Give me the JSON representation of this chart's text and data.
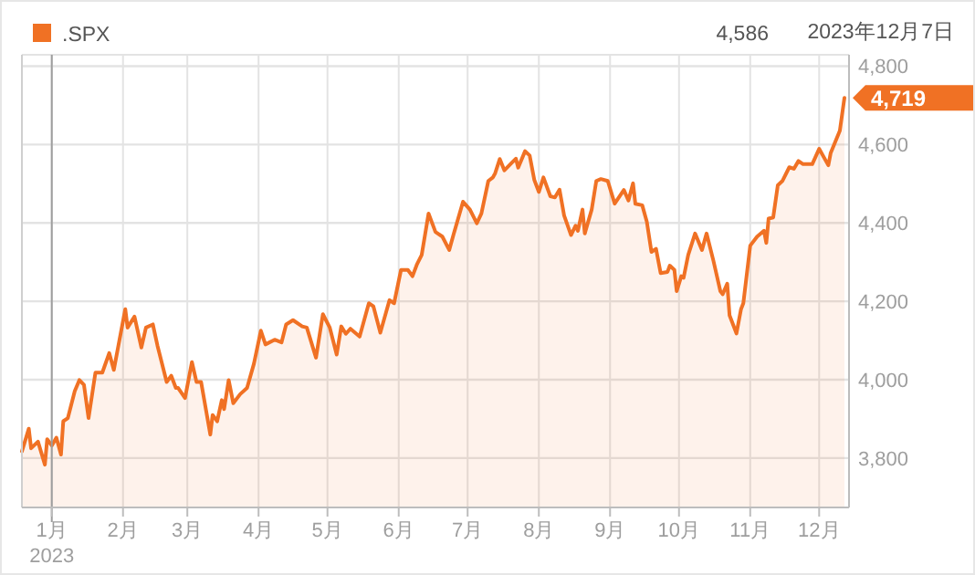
{
  "chart_data": {
    "type": "area",
    "legend": "top left",
    "grid": true,
    "xlim": [
      "2022-12-19",
      "2023-12-14"
    ],
    "ylim": [
      3674,
      4829
    ],
    "xticks": [
      {
        "value": "2023-01-01",
        "label": "1月"
      },
      {
        "value": "2023-02-01",
        "label": "2月"
      },
      {
        "value": "2023-03-01",
        "label": "3月"
      },
      {
        "value": "2023-04-01",
        "label": "4月"
      },
      {
        "value": "2023-05-01",
        "label": "5月"
      },
      {
        "value": "2023-06-01",
        "label": "6月"
      },
      {
        "value": "2023-07-01",
        "label": "7月"
      },
      {
        "value": "2023-08-01",
        "label": "8月"
      },
      {
        "value": "2023-09-01",
        "label": "9月"
      },
      {
        "value": "2023-10-01",
        "label": "10月"
      },
      {
        "value": "2023-11-01",
        "label": "11月"
      },
      {
        "value": "2023-12-01",
        "label": "12月"
      }
    ],
    "yticks": [
      {
        "value": 3800,
        "label": "3,800"
      },
      {
        "value": 4000,
        "label": "4,000"
      },
      {
        "value": 4200,
        "label": "4,200"
      },
      {
        "value": 4400,
        "label": "4,400"
      },
      {
        "value": 4600,
        "label": "4,600"
      },
      {
        "value": 4800,
        "label": "4,800"
      }
    ],
    "ref_lines": [
      {
        "axis": "x",
        "value": "2023-01-01",
        "color": "#9e9e9e"
      }
    ],
    "annotations": [
      "4,586",
      "2023年12月7日",
      "2023"
    ],
    "x": [
      "2022-12-19",
      "2022-12-22",
      "2022-12-23",
      "2022-12-26",
      "2022-12-29",
      "2022-12-30",
      "2023-01-01",
      "2023-01-03",
      "2023-01-05",
      "2023-01-06",
      "2023-01-08",
      "2023-01-11",
      "2023-01-13",
      "2023-01-15",
      "2023-01-17",
      "2023-01-20",
      "2023-01-23",
      "2023-01-26",
      "2023-01-28",
      "2023-02-02",
      "2023-02-03",
      "2023-02-06",
      "2023-02-09",
      "2023-02-11",
      "2023-02-14",
      "2023-02-16",
      "2023-02-20",
      "2023-02-22",
      "2023-02-24",
      "2023-02-25",
      "2023-02-28",
      "2023-03-03",
      "2023-03-05",
      "2023-03-07",
      "2023-03-11",
      "2023-03-12",
      "2023-03-14",
      "2023-03-16",
      "2023-03-17",
      "2023-03-19",
      "2023-03-21",
      "2023-03-24",
      "2023-03-27",
      "2023-03-30",
      "2023-04-02",
      "2023-04-04",
      "2023-04-08",
      "2023-04-11",
      "2023-04-13",
      "2023-04-16",
      "2023-04-20",
      "2023-04-22",
      "2023-04-26",
      "2023-04-29",
      "2023-05-02",
      "2023-05-05",
      "2023-05-07",
      "2023-05-09",
      "2023-05-11",
      "2023-05-15",
      "2023-05-19",
      "2023-05-21",
      "2023-05-24",
      "2023-05-28",
      "2023-05-30",
      "2023-06-02",
      "2023-06-05",
      "2023-06-07",
      "2023-06-09",
      "2023-06-11",
      "2023-06-14",
      "2023-06-17",
      "2023-06-20",
      "2023-06-23",
      "2023-06-25",
      "2023-06-29",
      "2023-07-02",
      "2023-07-05",
      "2023-07-07",
      "2023-07-10",
      "2023-07-12",
      "2023-07-13",
      "2023-07-15",
      "2023-07-17",
      "2023-07-20",
      "2023-07-22",
      "2023-07-23",
      "2023-07-26",
      "2023-07-28",
      "2023-07-30",
      "2023-08-01",
      "2023-08-03",
      "2023-08-06",
      "2023-08-08",
      "2023-08-10",
      "2023-08-12",
      "2023-08-15",
      "2023-08-17",
      "2023-08-18",
      "2023-08-20",
      "2023-08-21",
      "2023-08-24",
      "2023-08-26",
      "2023-08-28",
      "2023-08-31",
      "2023-09-03",
      "2023-09-07",
      "2023-09-09",
      "2023-09-11",
      "2023-09-12",
      "2023-09-15",
      "2023-09-17",
      "2023-09-19",
      "2023-09-21",
      "2023-09-23",
      "2023-09-26",
      "2023-09-27",
      "2023-09-29",
      "2023-09-30",
      "2023-10-02",
      "2023-10-03",
      "2023-10-05",
      "2023-10-08",
      "2023-10-11",
      "2023-10-13",
      "2023-10-16",
      "2023-10-19",
      "2023-10-20",
      "2023-10-22",
      "2023-10-23",
      "2023-10-26",
      "2023-10-28",
      "2023-10-29",
      "2023-11-01",
      "2023-11-04",
      "2023-11-07",
      "2023-11-08",
      "2023-11-09",
      "2023-11-11",
      "2023-11-13",
      "2023-11-15",
      "2023-11-18",
      "2023-11-20",
      "2023-11-22",
      "2023-11-24",
      "2023-11-28",
      "2023-12-01",
      "2023-12-05",
      "2023-12-06",
      "2023-12-10",
      "2023-12-12"
    ],
    "series": [
      {
        "name": ".SPX",
        "color": "#f07124",
        "values": [
          3817,
          3875,
          3825,
          3842,
          3783,
          3848,
          3832,
          3852,
          3809,
          3894,
          3902,
          3971,
          3999,
          3987,
          3902,
          4018,
          4018,
          4068,
          4025,
          4180,
          4133,
          4161,
          4082,
          4133,
          4141,
          4087,
          3994,
          4010,
          3979,
          3979,
          3953,
          4045,
          3994,
          3994,
          3860,
          3910,
          3894,
          3948,
          3925,
          3999,
          3940,
          3963,
          3979,
          4041,
          4125,
          4090,
          4102,
          4095,
          4141,
          4152,
          4136,
          4133,
          4056,
          4167,
          4133,
          4064,
          4136,
          4117,
          4130,
          4110,
          4195,
          4187,
          4120,
          4203,
          4195,
          4280,
          4280,
          4264,
          4295,
          4318,
          4424,
          4377,
          4365,
          4331,
          4373,
          4454,
          4434,
          4399,
          4424,
          4507,
          4516,
          4527,
          4563,
          4534,
          4552,
          4564,
          4541,
          4583,
          4572,
          4510,
          4479,
          4516,
          4468,
          4465,
          4485,
          4419,
          4369,
          4393,
          4380,
          4434,
          4373,
          4434,
          4507,
          4512,
          4507,
          4449,
          4484,
          4457,
          4501,
          4449,
          4445,
          4403,
          4326,
          4334,
          4272,
          4275,
          4291,
          4280,
          4226,
          4264,
          4260,
          4318,
          4373,
          4331,
          4373,
          4303,
          4226,
          4218,
          4245,
          4164,
          4118,
          4180,
          4195,
          4342,
          4365,
          4380,
          4349,
          4411,
          4414,
          4496,
          4507,
          4542,
          4538,
          4558,
          4550,
          4550,
          4589,
          4547,
          4578,
          4635,
          4719
        ],
        "value_labels": [
          null,
          null,
          null,
          null,
          null,
          null,
          null,
          null,
          null,
          null,
          null,
          null,
          null,
          null,
          null,
          null,
          null,
          null,
          null,
          null,
          null,
          null,
          null,
          null,
          null,
          null,
          null,
          null,
          null,
          null,
          null,
          null,
          null,
          null,
          null,
          null,
          null,
          null,
          null,
          null,
          null,
          null,
          null,
          null,
          null,
          null,
          null,
          null,
          null,
          null,
          null,
          null,
          null,
          null,
          null,
          null,
          null,
          null,
          null,
          null,
          null,
          null,
          null,
          null,
          null,
          null,
          null,
          null,
          null,
          null,
          null,
          null,
          null,
          null,
          null,
          null,
          null,
          null,
          null,
          null,
          null,
          null,
          null,
          null,
          null,
          null,
          null,
          null,
          null,
          null,
          null,
          null,
          null,
          null,
          null,
          null,
          null,
          null,
          null,
          null,
          null,
          null,
          null,
          null,
          null,
          null,
          null,
          null,
          null,
          null,
          null,
          null,
          null,
          null,
          null,
          null,
          null,
          null,
          null,
          null,
          null,
          null,
          null,
          null,
          null,
          null,
          null,
          null,
          null,
          null,
          null,
          null,
          null,
          null,
          null,
          null,
          null,
          null,
          null,
          null,
          null,
          null,
          null,
          null,
          null,
          null,
          null,
          null,
          null,
          null,
          "4,719"
        ]
      }
    ]
  }
}
